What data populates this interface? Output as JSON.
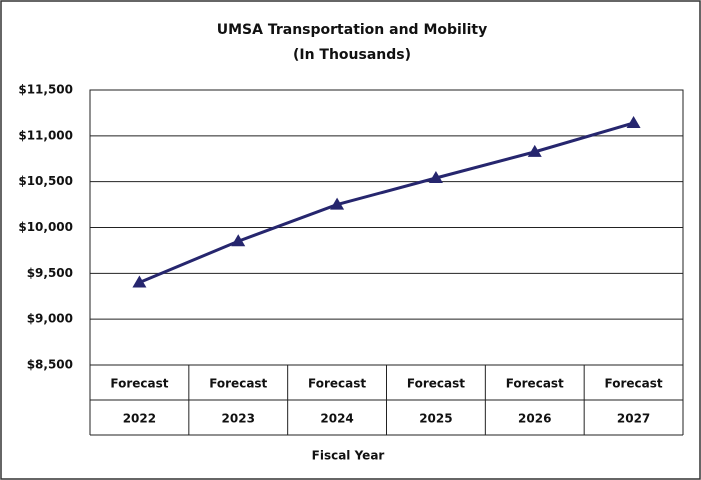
{
  "chart_data": {
    "type": "line",
    "title": [
      "UMSA Transportation and Mobility",
      "(In Thousands)"
    ],
    "x_label": "Fiscal Year",
    "categories": [
      [
        "Forecast",
        "2022"
      ],
      [
        "Forecast",
        "2023"
      ],
      [
        "Forecast",
        "2024"
      ],
      [
        "Forecast",
        "2025"
      ],
      [
        "Forecast",
        "2026"
      ],
      [
        "Forecast",
        "2027"
      ]
    ],
    "series": [
      {
        "name": "UMSA Transportation and Mobility",
        "color": "#26266e",
        "values": [
          9400,
          9850,
          10250,
          10540,
          10825,
          11140
        ]
      }
    ],
    "ylim": [
      8500,
      11500
    ],
    "yticks": [
      {
        "value": 8500,
        "label": "$8,500"
      },
      {
        "value": 9000,
        "label": "$9,000"
      },
      {
        "value": 9500,
        "label": "$9,500"
      },
      {
        "value": 10000,
        "label": "$10,000"
      },
      {
        "value": 10500,
        "label": "$10,500"
      },
      {
        "value": 11000,
        "label": "$11,000"
      },
      {
        "value": 11500,
        "label": "$11,500"
      }
    ],
    "grid": true,
    "marker": "triangle"
  }
}
